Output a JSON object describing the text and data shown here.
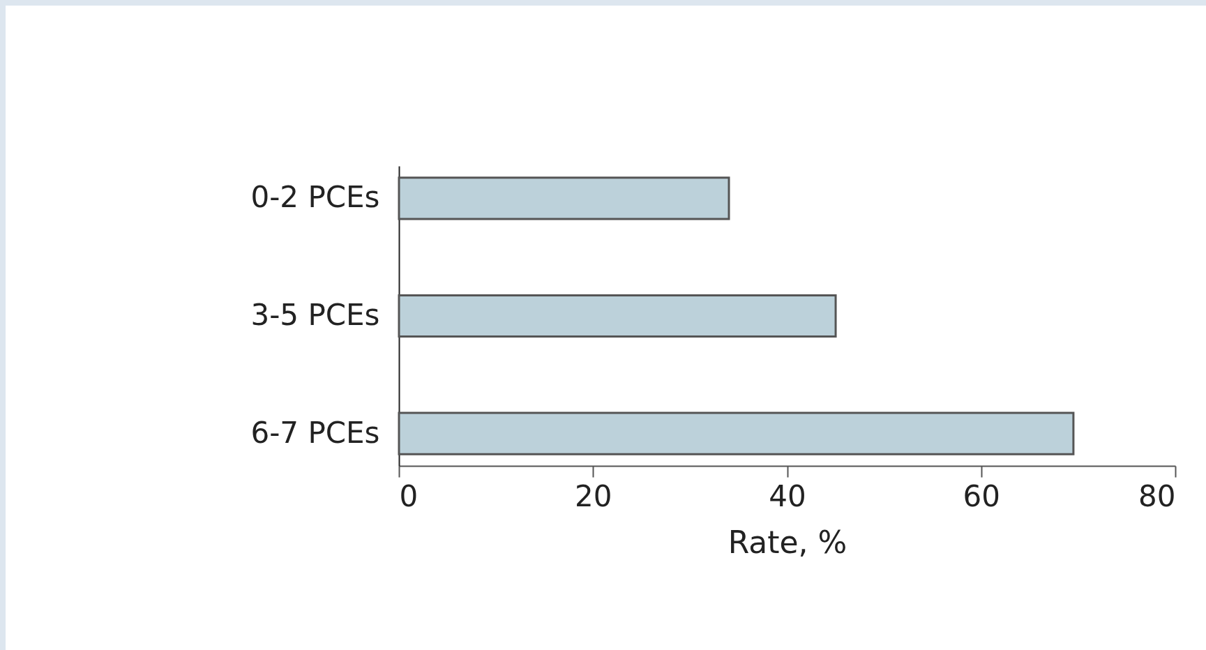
{
  "chart_data": {
    "type": "bar",
    "orientation": "horizontal",
    "categories": [
      "0-2 PCEs",
      "3-5 PCEs",
      "6-7 PCEs"
    ],
    "values": [
      34,
      45,
      69.5
    ],
    "color": "#bcd1da",
    "xlabel": "Rate, %",
    "xlim": [
      0,
      80
    ],
    "xticks": [
      0,
      20,
      40,
      60,
      80
    ],
    "grid": false
  }
}
